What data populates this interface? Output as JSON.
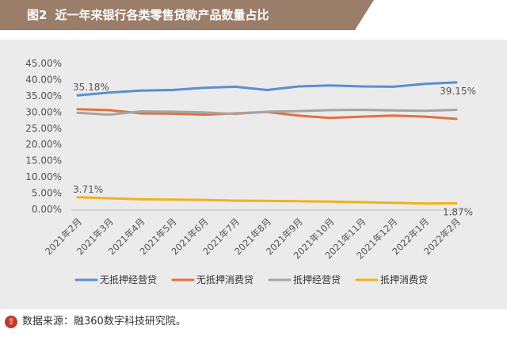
{
  "header": {
    "figure_tag": "图2",
    "title": "近一年来银行各类零售贷款产品数量占比"
  },
  "footer": {
    "source": "数据来源：融360数字科技研究院。"
  },
  "chart_data": {
    "type": "line",
    "title": "近一年来银行各类零售贷款产品数量占比",
    "xlabel": "",
    "ylabel": "",
    "ylim": [
      0,
      45
    ],
    "yticks": [
      "0.00%",
      "5.00%",
      "10.00%",
      "15.00%",
      "20.00%",
      "25.00%",
      "30.00%",
      "35.00%",
      "40.00%",
      "45.00%"
    ],
    "grid": false,
    "legend_position": "bottom",
    "categories": [
      "2021年2月",
      "2021年3月",
      "2021年4月",
      "2021年5月",
      "2021年6月",
      "2021年7月",
      "2021年8月",
      "2021年9月",
      "2021年10月",
      "2021年11月",
      "2021年12月",
      "2022年1月",
      "2022年2月"
    ],
    "series": [
      {
        "name": "无抵押经营贷",
        "color": "#5b8fd0",
        "values": [
          35.18,
          36.0,
          36.6,
          36.8,
          37.5,
          37.8,
          36.8,
          37.9,
          38.2,
          37.9,
          37.8,
          38.7,
          39.15
        ]
      },
      {
        "name": "无抵押消费贷",
        "color": "#e0723c",
        "values": [
          30.9,
          30.6,
          29.6,
          29.5,
          29.2,
          29.6,
          30.0,
          28.9,
          28.2,
          28.6,
          28.9,
          28.6,
          27.9
        ]
      },
      {
        "name": "抵押经营贷",
        "color": "#a5a5a5",
        "values": [
          29.8,
          29.2,
          30.2,
          30.1,
          29.9,
          29.4,
          30.1,
          30.3,
          30.6,
          30.7,
          30.5,
          30.4,
          30.7
        ]
      },
      {
        "name": "抵押消费贷",
        "color": "#f0b21a",
        "values": [
          3.71,
          3.4,
          3.1,
          3.0,
          2.9,
          2.7,
          2.6,
          2.5,
          2.4,
          2.2,
          2.0,
          1.8,
          1.87
        ]
      }
    ],
    "annotations": [
      {
        "series": 0,
        "index": 0,
        "label": "35.18%"
      },
      {
        "series": 0,
        "index": 12,
        "label": "39.15%"
      },
      {
        "series": 3,
        "index": 0,
        "label": "3.71%"
      },
      {
        "series": 3,
        "index": 12,
        "label": "1.87%"
      }
    ]
  }
}
